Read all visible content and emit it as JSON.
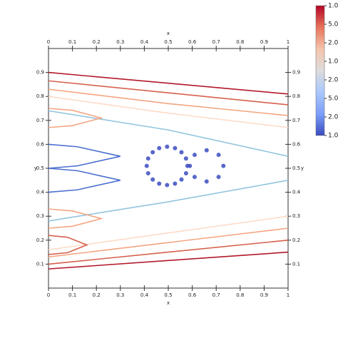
{
  "chart_data": {
    "type": "line",
    "x_label": "x",
    "y_label": "y",
    "xlim": [
      0,
      1
    ],
    "ylim": [
      0,
      1
    ],
    "xticks": [
      0,
      0.1,
      0.2,
      0.3,
      0.4,
      0.5,
      0.6,
      0.7,
      0.8,
      0.9,
      1
    ],
    "yticks": [
      0.1,
      0.2,
      0.3,
      0.4,
      0.5,
      0.6,
      0.7,
      0.8,
      0.9
    ],
    "series": [
      {
        "color": "#b2182b",
        "x": [
          0,
          0.5,
          1
        ],
        "values": [
          0.9,
          0.855,
          0.81
        ]
      },
      {
        "color": "#d6604d",
        "x": [
          0,
          0.5,
          1
        ],
        "values": [
          0.865,
          0.815,
          0.765
        ]
      },
      {
        "color": "#f4a582",
        "x": [
          0,
          0.5,
          1
        ],
        "values": [
          0.83,
          0.77,
          0.72
        ]
      },
      {
        "color": "#fddbc7",
        "x": [
          0,
          0.5,
          1
        ],
        "values": [
          0.8,
          0.73,
          0.67
        ]
      },
      {
        "color": "#92c5de",
        "x": [
          0,
          0.5,
          1
        ],
        "values": [
          0.74,
          0.66,
          0.55
        ]
      },
      {
        "color": "#92c5de",
        "x": [
          0,
          0.5,
          1
        ],
        "values": [
          0.28,
          0.36,
          0.45
        ]
      },
      {
        "color": "#fddbc7",
        "x": [
          0,
          0.5,
          1
        ],
        "values": [
          0.16,
          0.23,
          0.3
        ]
      },
      {
        "color": "#f4a582",
        "x": [
          0,
          0.5,
          1
        ],
        "values": [
          0.13,
          0.19,
          0.25
        ]
      },
      {
        "color": "#d6604d",
        "x": [
          0,
          0.5,
          1
        ],
        "values": [
          0.1,
          0.15,
          0.2
        ]
      },
      {
        "color": "#b2182b",
        "x": [
          0,
          0.5,
          1
        ],
        "values": [
          0.08,
          0.115,
          0.15
        ]
      },
      {
        "color": "#f4a582",
        "x": [
          0,
          0.1,
          0.22,
          0.1,
          0
        ],
        "values": [
          0.75,
          0.742,
          0.71,
          0.678,
          0.67
        ]
      },
      {
        "color": "#4a6fd0",
        "x": [
          0,
          0.12,
          0.3,
          0.12,
          0
        ],
        "values": [
          0.6,
          0.59,
          0.55,
          0.51,
          0.5
        ]
      },
      {
        "color": "#4a6fd0",
        "x": [
          0,
          0.12,
          0.3,
          0.12,
          0
        ],
        "values": [
          0.5,
          0.49,
          0.45,
          0.41,
          0.4
        ]
      },
      {
        "color": "#f4a582",
        "x": [
          0,
          0.1,
          0.22,
          0.1,
          0
        ],
        "values": [
          0.33,
          0.322,
          0.29,
          0.258,
          0.25
        ]
      },
      {
        "color": "#d6604d",
        "x": [
          0,
          0.08,
          0.16,
          0.08,
          0
        ],
        "values": [
          0.22,
          0.212,
          0.18,
          0.148,
          0.14
        ]
      },
      {
        "color": "#3b4cc0",
        "marker": true,
        "x": [
          0.58,
          0.574,
          0.555,
          0.528,
          0.495,
          0.462,
          0.435,
          0.416,
          0.41,
          0.416,
          0.435,
          0.462,
          0.495,
          0.528,
          0.555,
          0.574
        ],
        "values": [
          0.51,
          0.541,
          0.567,
          0.584,
          0.59,
          0.584,
          0.567,
          0.541,
          0.51,
          0.479,
          0.453,
          0.436,
          0.43,
          0.436,
          0.453,
          0.479
        ]
      },
      {
        "color": "#3b4cc0",
        "marker": true,
        "x": [
          0.73,
          0.71,
          0.66,
          0.61,
          0.59,
          0.61,
          0.66,
          0.71
        ],
        "values": [
          0.51,
          0.556,
          0.575,
          0.556,
          0.51,
          0.464,
          0.445,
          0.464
        ]
      }
    ],
    "colorbar": {
      "labels": [
        "1.0e",
        "5.0e",
        "2.0e",
        "1.0e",
        "2.0e",
        "5.0e",
        "2.0e",
        "1.0e"
      ],
      "colors": [
        "#b40426",
        "#e7745b",
        "#f5c4ac",
        "#dddcdc",
        "#aac7fd",
        "#7b9ff9",
        "#3b4cc0"
      ]
    }
  }
}
